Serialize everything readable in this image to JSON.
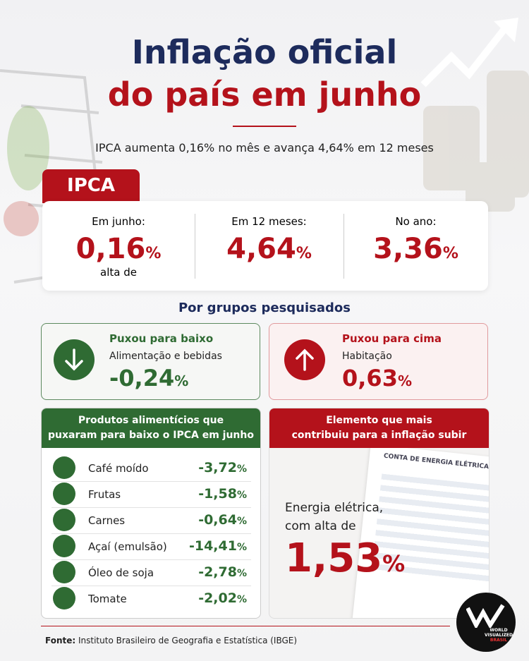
{
  "header": {
    "title_line1": "Inflação oficial",
    "title_line2": "do país em junho",
    "subtitle": "IPCA aumenta 0,16% no mês e avança 4,64% em 12 meses"
  },
  "ipca": {
    "label": "IPCA",
    "items": [
      {
        "label": "Em junho:",
        "value": "0,16",
        "unit": "%",
        "note": "alta de"
      },
      {
        "label": "Em 12 meses:",
        "value": "4,64",
        "unit": "%"
      },
      {
        "label": "No ano:",
        "value": "3,36",
        "unit": "%"
      }
    ]
  },
  "groups": {
    "title": "Por grupos pesquisados",
    "down": {
      "heading": "Puxou para baixo",
      "group": "Alimentação e bebidas",
      "value": "-0,24",
      "unit": "%"
    },
    "up": {
      "heading": "Puxou para cima",
      "group": "Habitação",
      "value": "0,63",
      "unit": "%"
    }
  },
  "foods": {
    "title_lines": [
      "Produtos alimentícios que",
      "puxaram para baixo o IPCA em junho"
    ],
    "rows": [
      {
        "name": "Café moído",
        "value": "-3,72",
        "unit": "%"
      },
      {
        "name": "Frutas",
        "value": "-1,58",
        "unit": "%"
      },
      {
        "name": "Carnes",
        "value": "-0,64",
        "unit": "%"
      },
      {
        "name": "Açaí (emulsão)",
        "value": "-14,41",
        "unit": "%"
      },
      {
        "name": "Óleo de soja",
        "value": "-2,78",
        "unit": "%"
      },
      {
        "name": "Tomate",
        "value": "-2,02",
        "unit": "%"
      }
    ]
  },
  "energy": {
    "title_lines": [
      "Elemento que mais",
      "contribuiu para a inflação subir"
    ],
    "text_lines": [
      "Energia elétrica,",
      "com alta de"
    ],
    "value": "1,53",
    "unit": "%",
    "bill_title": "CONTA DE ENERGIA ELÉTRICA"
  },
  "logo": {
    "lines": [
      "WORLD",
      "VISUALIZED",
      "BRASIL"
    ]
  },
  "source": {
    "label": "Fonte:",
    "text": "Instituto Brasileiro de Geografia e Estatística (IBGE)"
  }
}
